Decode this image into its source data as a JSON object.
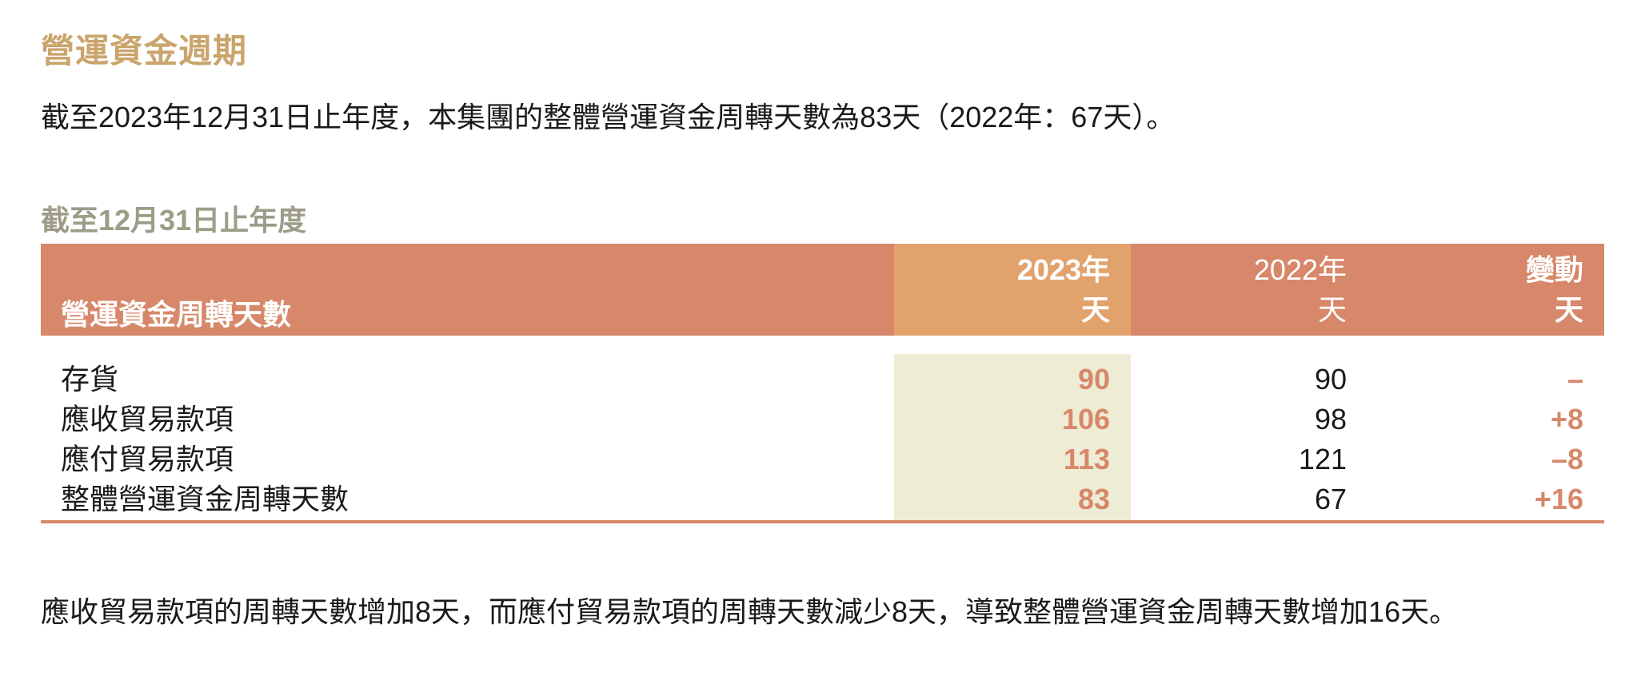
{
  "section": {
    "title": "營運資金週期",
    "intro": "截至2023年12月31日止年度，本集團的整體營運資金周轉天數為83天（2022年：67天）。",
    "subtitle": "截至12月31日止年度",
    "conclusion": "應收貿易款項的周轉天數增加8天，而應付貿易款項的周轉天數減少8天，導致整體營運資金周轉天數增加16天。"
  },
  "table": {
    "header_label": "營運資金周轉天數",
    "columns": [
      {
        "year": "2023年",
        "unit": "天"
      },
      {
        "year": "2022年",
        "unit": "天"
      },
      {
        "year": "變動",
        "unit": "天"
      }
    ],
    "rows": [
      {
        "label": "存貨",
        "v2023": "90",
        "v2022": "90",
        "change": "–"
      },
      {
        "label": "應收貿易款項",
        "v2023": "106",
        "v2022": "98",
        "change": "+8"
      },
      {
        "label": "應付貿易款項",
        "v2023": "113",
        "v2022": "121",
        "change": "–8"
      },
      {
        "label": "整體營運資金周轉天數",
        "v2023": "83",
        "v2022": "67",
        "change": "+16"
      }
    ]
  },
  "colors": {
    "title": "#C9A46C",
    "subtitle": "#9C9C88",
    "header_bg": "#D7876A",
    "header_2023_bg": "#E2A26C",
    "highlight_bg": "#EEECD5",
    "accent_values": "#D7876A"
  }
}
